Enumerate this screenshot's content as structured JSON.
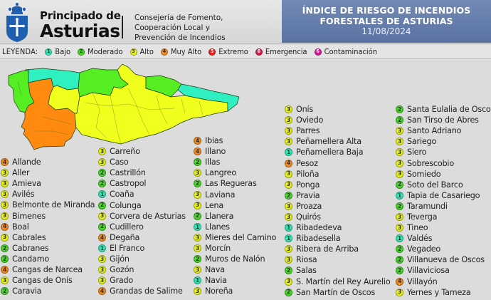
{
  "header": {
    "brand_line1": "Principado de",
    "brand_line2": "Asturias",
    "department": [
      "Consejería de Fomento,",
      "Cooperación Local y",
      "Prevención de Incendios"
    ],
    "title_line1": "ÍNDICE DE RIESGO DE INCENDIOS",
    "title_line2": "FORESTALES DE ASTURIAS",
    "date": "11/08/2024"
  },
  "legend": {
    "title": "LEYENDA:",
    "items": [
      {
        "level": "1",
        "label": "Bajo",
        "color": "#2fe6b4"
      },
      {
        "level": "2",
        "label": "Moderado",
        "color": "#49d62a"
      },
      {
        "level": "3",
        "label": "Alto",
        "color": "#e7f21a"
      },
      {
        "level": "4",
        "label": "Muy Alto",
        "color": "#f28a22"
      },
      {
        "level": "5",
        "label": "Extremo",
        "color": "#e5201f"
      },
      {
        "level": "6",
        "label": "Emergencia",
        "color": "#d81a48"
      },
      {
        "level": "6",
        "label": "Contaminación",
        "color": "#d01a95"
      }
    ]
  },
  "levels": {
    "1": "#2fe6b4",
    "2": "#49d62a",
    "3": "#e7f21a",
    "4": "#f28a22"
  },
  "map": {
    "region_colors": {
      "bajo": "#2ff0c0",
      "moderado": "#55ee22",
      "alto": "#f0ff1c",
      "muy_alto": "#ff8a10"
    }
  },
  "municipalities": {
    "col1": [
      {
        "name": "Allande",
        "level": "4"
      },
      {
        "name": "Aller",
        "level": "3"
      },
      {
        "name": "Amieva",
        "level": "3"
      },
      {
        "name": "Avilés",
        "level": "3"
      },
      {
        "name": "Belmonte de Miranda",
        "level": "3"
      },
      {
        "name": "Bimenes",
        "level": "3"
      },
      {
        "name": "Boal",
        "level": "4"
      },
      {
        "name": "Cabrales",
        "level": "3"
      },
      {
        "name": "Cabranes",
        "level": "2"
      },
      {
        "name": "Candamo",
        "level": "2"
      },
      {
        "name": "Cangas de Narcea",
        "level": "4"
      },
      {
        "name": "Cangas de Onís",
        "level": "3"
      },
      {
        "name": "Caravia",
        "level": "2"
      }
    ],
    "col2": [
      {
        "name": "Carreño",
        "level": "3"
      },
      {
        "name": "Caso",
        "level": "3"
      },
      {
        "name": "Castrillón",
        "level": "2"
      },
      {
        "name": "Castropol",
        "level": "2"
      },
      {
        "name": "Coaña",
        "level": "1"
      },
      {
        "name": "Colunga",
        "level": "2"
      },
      {
        "name": "Corvera de Asturias",
        "level": "3"
      },
      {
        "name": "Cudillero",
        "level": "2"
      },
      {
        "name": "Degaña",
        "level": "4"
      },
      {
        "name": "El Franco",
        "level": "1"
      },
      {
        "name": "Gijón",
        "level": "3"
      },
      {
        "name": "Gozón",
        "level": "3"
      },
      {
        "name": "Grado",
        "level": "3"
      },
      {
        "name": "Grandas de Salime",
        "level": "4"
      }
    ],
    "col3": [
      {
        "name": "Ibias",
        "level": "4"
      },
      {
        "name": "Illano",
        "level": "4"
      },
      {
        "name": "Illas",
        "level": "2"
      },
      {
        "name": "Langreo",
        "level": "3"
      },
      {
        "name": "Las Regueras",
        "level": "2"
      },
      {
        "name": "Laviana",
        "level": "3"
      },
      {
        "name": "Lena",
        "level": "3"
      },
      {
        "name": "Llanera",
        "level": "2"
      },
      {
        "name": "Llanes",
        "level": "1"
      },
      {
        "name": "Mieres del Camino",
        "level": "3"
      },
      {
        "name": "Morcín",
        "level": "3"
      },
      {
        "name": "Muros de Nalón",
        "level": "2"
      },
      {
        "name": "Nava",
        "level": "3"
      },
      {
        "name": "Navia",
        "level": "1"
      },
      {
        "name": "Noreña",
        "level": "3"
      }
    ],
    "col4": [
      {
        "name": "Onís",
        "level": "3"
      },
      {
        "name": "Oviedo",
        "level": "3"
      },
      {
        "name": "Parres",
        "level": "3"
      },
      {
        "name": "Peñamellera Alta",
        "level": "3"
      },
      {
        "name": "Peñamellera Baja",
        "level": "1"
      },
      {
        "name": "Pesoz",
        "level": "4"
      },
      {
        "name": "Piloña",
        "level": "3"
      },
      {
        "name": "Ponga",
        "level": "3"
      },
      {
        "name": "Pravia",
        "level": "2"
      },
      {
        "name": "Proaza",
        "level": "3"
      },
      {
        "name": "Quirós",
        "level": "3"
      },
      {
        "name": "Ribadedeva",
        "level": "1"
      },
      {
        "name": "Ribadesella",
        "level": "1"
      },
      {
        "name": "Ribera de Arriba",
        "level": "3"
      },
      {
        "name": "Riosa",
        "level": "3"
      },
      {
        "name": "Salas",
        "level": "2"
      },
      {
        "name": "S. Martín del Rey Aurelio",
        "level": "3"
      },
      {
        "name": "San Martín de Oscos",
        "level": "2"
      }
    ],
    "col5": [
      {
        "name": "Santa Eulalia de Oscos",
        "level": "2"
      },
      {
        "name": "San Tirso de Abres",
        "level": "2"
      },
      {
        "name": "Santo Adriano",
        "level": "3"
      },
      {
        "name": "Sariego",
        "level": "3"
      },
      {
        "name": "Siero",
        "level": "3"
      },
      {
        "name": "Sobrescobio",
        "level": "3"
      },
      {
        "name": "Somiedo",
        "level": "3"
      },
      {
        "name": "Soto del Barco",
        "level": "2"
      },
      {
        "name": "Tapia de Casariego",
        "level": "1"
      },
      {
        "name": "Taramundi",
        "level": "2"
      },
      {
        "name": "Teverga",
        "level": "3"
      },
      {
        "name": "Tineo",
        "level": "3"
      },
      {
        "name": "Valdés",
        "level": "1"
      },
      {
        "name": "Vegadeo",
        "level": "2"
      },
      {
        "name": "Villanueva de Oscos",
        "level": "2"
      },
      {
        "name": "Villaviciosa",
        "level": "2"
      },
      {
        "name": "Villayón",
        "level": "4"
      },
      {
        "name": "Yernes y Tameza",
        "level": "3"
      }
    ]
  }
}
